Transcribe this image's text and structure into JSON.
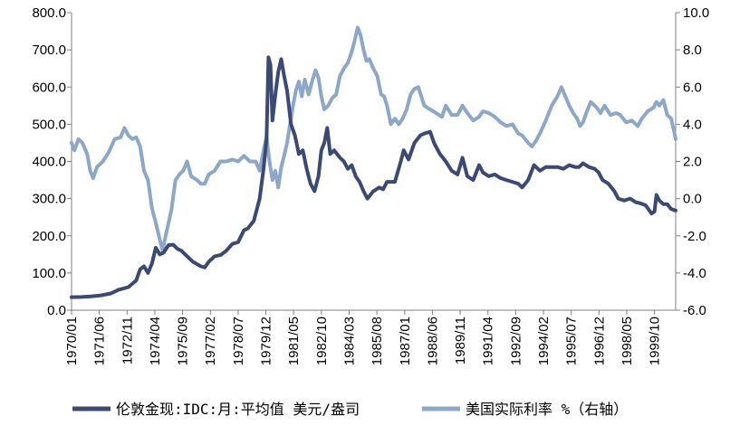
{
  "chart_data": {
    "type": "line",
    "x_ticks": [
      "1970/01",
      "1971/06",
      "1972/11",
      "1974/04",
      "1975/09",
      "1977/02",
      "1978/07",
      "1979/12",
      "1981/05",
      "1982/10",
      "1984/03",
      "1985/08",
      "1987/01",
      "1988/06",
      "1989/11",
      "1991/04",
      "1992/09",
      "1994/02",
      "1995/07",
      "1996/12",
      "1998/05",
      "1999/10"
    ],
    "y_left": {
      "range": [
        0,
        800
      ],
      "ticks": [
        "800.0",
        "700.0",
        "600.0",
        "500.0",
        "400.0",
        "300.0",
        "200.0",
        "100.0",
        "0.0"
      ]
    },
    "y_right": {
      "range": [
        -6,
        10
      ],
      "ticks": [
        "10.0",
        "8.0",
        "6.0",
        "4.0",
        "2.0",
        "0.0",
        "-2.0",
        "-4.0",
        "-6.0"
      ]
    },
    "x_range": [
      1970.0,
      2000.83
    ],
    "grid": false,
    "legend_position": "bottom",
    "series": [
      {
        "name": "伦敦金现:IDC:月:平均值 美元/盎司",
        "axis": "left",
        "color": "#3b4a74",
        "points": [
          [
            1970.0,
            35
          ],
          [
            1970.5,
            35.5
          ],
          [
            1971.0,
            37
          ],
          [
            1971.5,
            40
          ],
          [
            1972.0,
            45
          ],
          [
            1972.4,
            55
          ],
          [
            1972.9,
            62
          ],
          [
            1973.3,
            80
          ],
          [
            1973.5,
            110
          ],
          [
            1973.7,
            118
          ],
          [
            1973.9,
            100
          ],
          [
            1974.1,
            125
          ],
          [
            1974.3,
            168
          ],
          [
            1974.5,
            150
          ],
          [
            1974.7,
            155
          ],
          [
            1974.95,
            175
          ],
          [
            1975.2,
            176
          ],
          [
            1975.4,
            165
          ],
          [
            1975.6,
            160
          ],
          [
            1975.9,
            145
          ],
          [
            1976.2,
            130
          ],
          [
            1976.6,
            118
          ],
          [
            1976.8,
            115
          ],
          [
            1977.0,
            130
          ],
          [
            1977.3,
            145
          ],
          [
            1977.6,
            148
          ],
          [
            1977.9,
            160
          ],
          [
            1978.2,
            178
          ],
          [
            1978.5,
            183
          ],
          [
            1978.8,
            215
          ],
          [
            1979.0,
            220
          ],
          [
            1979.3,
            240
          ],
          [
            1979.6,
            300
          ],
          [
            1979.8,
            380
          ],
          [
            1979.95,
            460
          ],
          [
            1980.05,
            680
          ],
          [
            1980.15,
            660
          ],
          [
            1980.25,
            510
          ],
          [
            1980.4,
            580
          ],
          [
            1980.55,
            640
          ],
          [
            1980.7,
            675
          ],
          [
            1980.85,
            630
          ],
          [
            1981.0,
            590
          ],
          [
            1981.2,
            500
          ],
          [
            1981.4,
            470
          ],
          [
            1981.6,
            420
          ],
          [
            1981.8,
            430
          ],
          [
            1982.0,
            380
          ],
          [
            1982.2,
            340
          ],
          [
            1982.4,
            320
          ],
          [
            1982.6,
            360
          ],
          [
            1982.75,
            430
          ],
          [
            1982.9,
            450
          ],
          [
            1983.05,
            490
          ],
          [
            1983.2,
            420
          ],
          [
            1983.4,
            430
          ],
          [
            1983.7,
            410
          ],
          [
            1983.9,
            400
          ],
          [
            1984.1,
            380
          ],
          [
            1984.3,
            390
          ],
          [
            1984.5,
            360
          ],
          [
            1984.7,
            345
          ],
          [
            1984.9,
            320
          ],
          [
            1985.1,
            300
          ],
          [
            1985.4,
            320
          ],
          [
            1985.7,
            330
          ],
          [
            1985.9,
            325
          ],
          [
            1986.1,
            345
          ],
          [
            1986.5,
            345
          ],
          [
            1986.8,
            400
          ],
          [
            1986.95,
            430
          ],
          [
            1987.2,
            405
          ],
          [
            1987.5,
            450
          ],
          [
            1987.8,
            470
          ],
          [
            1988.0,
            475
          ],
          [
            1988.3,
            480
          ],
          [
            1988.5,
            450
          ],
          [
            1988.8,
            420
          ],
          [
            1989.1,
            400
          ],
          [
            1989.4,
            375
          ],
          [
            1989.7,
            365
          ],
          [
            1989.95,
            410
          ],
          [
            1990.2,
            360
          ],
          [
            1990.5,
            350
          ],
          [
            1990.8,
            390
          ],
          [
            1991.0,
            370
          ],
          [
            1991.3,
            360
          ],
          [
            1991.6,
            365
          ],
          [
            1991.9,
            355
          ],
          [
            1992.2,
            350
          ],
          [
            1992.5,
            345
          ],
          [
            1992.8,
            340
          ],
          [
            1993.0,
            330
          ],
          [
            1993.3,
            350
          ],
          [
            1993.6,
            390
          ],
          [
            1993.9,
            375
          ],
          [
            1994.2,
            385
          ],
          [
            1994.5,
            385
          ],
          [
            1994.8,
            385
          ],
          [
            1995.1,
            380
          ],
          [
            1995.4,
            390
          ],
          [
            1995.7,
            385
          ],
          [
            1995.9,
            385
          ],
          [
            1996.1,
            395
          ],
          [
            1996.4,
            385
          ],
          [
            1996.7,
            380
          ],
          [
            1996.9,
            370
          ],
          [
            1997.1,
            350
          ],
          [
            1997.4,
            340
          ],
          [
            1997.7,
            320
          ],
          [
            1997.9,
            300
          ],
          [
            1998.2,
            295
          ],
          [
            1998.5,
            300
          ],
          [
            1998.8,
            290
          ],
          [
            1999.0,
            288
          ],
          [
            1999.3,
            282
          ],
          [
            1999.6,
            260
          ],
          [
            1999.75,
            265
          ],
          [
            1999.85,
            310
          ],
          [
            2000.0,
            295
          ],
          [
            2000.2,
            285
          ],
          [
            2000.4,
            285
          ],
          [
            2000.6,
            272
          ],
          [
            2000.83,
            268
          ]
        ]
      },
      {
        "name": "美国实际利率 %（右轴）",
        "axis": "right",
        "color": "#8ca7c8",
        "points": [
          [
            1970.0,
            3.0
          ],
          [
            1970.15,
            2.6
          ],
          [
            1970.35,
            3.2
          ],
          [
            1970.55,
            3.0
          ],
          [
            1970.8,
            2.4
          ],
          [
            1970.95,
            1.5
          ],
          [
            1971.1,
            1.1
          ],
          [
            1971.3,
            1.7
          ],
          [
            1971.6,
            2.0
          ],
          [
            1971.9,
            2.5
          ],
          [
            1972.2,
            3.2
          ],
          [
            1972.5,
            3.3
          ],
          [
            1972.7,
            3.8
          ],
          [
            1972.9,
            3.4
          ],
          [
            1973.1,
            3.2
          ],
          [
            1973.3,
            3.3
          ],
          [
            1973.5,
            2.8
          ],
          [
            1973.7,
            1.5
          ],
          [
            1973.9,
            1.0
          ],
          [
            1974.1,
            -0.5
          ],
          [
            1974.3,
            -1.3
          ],
          [
            1974.5,
            -2.2
          ],
          [
            1974.65,
            -2.8
          ],
          [
            1974.8,
            -2.0
          ],
          [
            1974.95,
            -1.3
          ],
          [
            1975.1,
            -0.6
          ],
          [
            1975.3,
            1.0
          ],
          [
            1975.5,
            1.3
          ],
          [
            1975.7,
            1.5
          ],
          [
            1975.9,
            2.0
          ],
          [
            1976.1,
            1.2
          ],
          [
            1976.4,
            1.0
          ],
          [
            1976.6,
            0.8
          ],
          [
            1976.8,
            0.8
          ],
          [
            1977.0,
            1.3
          ],
          [
            1977.3,
            1.5
          ],
          [
            1977.6,
            2.0
          ],
          [
            1977.9,
            2.0
          ],
          [
            1978.2,
            2.1
          ],
          [
            1978.5,
            2.0
          ],
          [
            1978.8,
            2.3
          ],
          [
            1979.1,
            2.0
          ],
          [
            1979.4,
            2.0
          ],
          [
            1979.6,
            1.5
          ],
          [
            1979.8,
            2.6
          ],
          [
            1979.95,
            3.3
          ],
          [
            1980.1,
            2.0
          ],
          [
            1980.25,
            1.0
          ],
          [
            1980.4,
            1.5
          ],
          [
            1980.55,
            0.6
          ],
          [
            1980.7,
            1.7
          ],
          [
            1980.85,
            2.3
          ],
          [
            1981.0,
            3.0
          ],
          [
            1981.15,
            4.0
          ],
          [
            1981.3,
            5.0
          ],
          [
            1981.45,
            5.8
          ],
          [
            1981.6,
            6.3
          ],
          [
            1981.75,
            5.5
          ],
          [
            1981.9,
            6.4
          ],
          [
            1982.1,
            5.6
          ],
          [
            1982.3,
            6.4
          ],
          [
            1982.45,
            6.9
          ],
          [
            1982.6,
            6.5
          ],
          [
            1982.75,
            5.5
          ],
          [
            1982.9,
            4.8
          ],
          [
            1983.1,
            5.0
          ],
          [
            1983.3,
            5.4
          ],
          [
            1983.5,
            5.6
          ],
          [
            1983.7,
            6.6
          ],
          [
            1983.9,
            7.0
          ],
          [
            1984.1,
            7.3
          ],
          [
            1984.3,
            7.9
          ],
          [
            1984.45,
            8.5
          ],
          [
            1984.6,
            9.2
          ],
          [
            1984.75,
            8.8
          ],
          [
            1984.9,
            8.0
          ],
          [
            1985.05,
            7.4
          ],
          [
            1985.2,
            7.5
          ],
          [
            1985.4,
            7.0
          ],
          [
            1985.6,
            6.6
          ],
          [
            1985.8,
            5.6
          ],
          [
            1985.95,
            5.5
          ],
          [
            1986.1,
            5.0
          ],
          [
            1986.3,
            4.0
          ],
          [
            1986.5,
            4.3
          ],
          [
            1986.7,
            4.0
          ],
          [
            1986.9,
            4.3
          ],
          [
            1987.1,
            4.8
          ],
          [
            1987.3,
            5.6
          ],
          [
            1987.5,
            5.9
          ],
          [
            1987.7,
            6.0
          ],
          [
            1987.85,
            5.5
          ],
          [
            1988.0,
            5.0
          ],
          [
            1988.3,
            4.8
          ],
          [
            1988.6,
            4.6
          ],
          [
            1988.9,
            4.4
          ],
          [
            1989.1,
            5.0
          ],
          [
            1989.4,
            4.5
          ],
          [
            1989.7,
            4.5
          ],
          [
            1989.95,
            5.0
          ],
          [
            1990.2,
            4.6
          ],
          [
            1990.5,
            4.2
          ],
          [
            1990.8,
            4.4
          ],
          [
            1991.0,
            4.7
          ],
          [
            1991.3,
            4.6
          ],
          [
            1991.6,
            4.4
          ],
          [
            1991.9,
            4.1
          ],
          [
            1992.2,
            3.9
          ],
          [
            1992.5,
            4.0
          ],
          [
            1992.8,
            3.5
          ],
          [
            1993.0,
            3.4
          ],
          [
            1993.3,
            3.0
          ],
          [
            1993.5,
            2.8
          ],
          [
            1993.7,
            3.1
          ],
          [
            1993.9,
            3.5
          ],
          [
            1994.2,
            4.2
          ],
          [
            1994.5,
            5.0
          ],
          [
            1994.8,
            5.5
          ],
          [
            1995.0,
            6.0
          ],
          [
            1995.2,
            5.5
          ],
          [
            1995.4,
            5.0
          ],
          [
            1995.6,
            4.6
          ],
          [
            1995.8,
            4.3
          ],
          [
            1995.95,
            3.9
          ],
          [
            1996.1,
            4.1
          ],
          [
            1996.3,
            4.7
          ],
          [
            1996.5,
            5.2
          ],
          [
            1996.8,
            4.9
          ],
          [
            1997.0,
            4.6
          ],
          [
            1997.2,
            5.0
          ],
          [
            1997.5,
            4.5
          ],
          [
            1997.8,
            4.6
          ],
          [
            1998.0,
            4.5
          ],
          [
            1998.3,
            4.1
          ],
          [
            1998.6,
            4.2
          ],
          [
            1998.9,
            3.9
          ],
          [
            1999.1,
            4.3
          ],
          [
            1999.4,
            4.7
          ],
          [
            1999.7,
            4.9
          ],
          [
            1999.85,
            5.2
          ],
          [
            2000.0,
            5.0
          ],
          [
            2000.2,
            5.3
          ],
          [
            2000.4,
            4.5
          ],
          [
            2000.6,
            4.3
          ],
          [
            2000.75,
            3.6
          ],
          [
            2000.83,
            3.2
          ]
        ]
      }
    ]
  }
}
